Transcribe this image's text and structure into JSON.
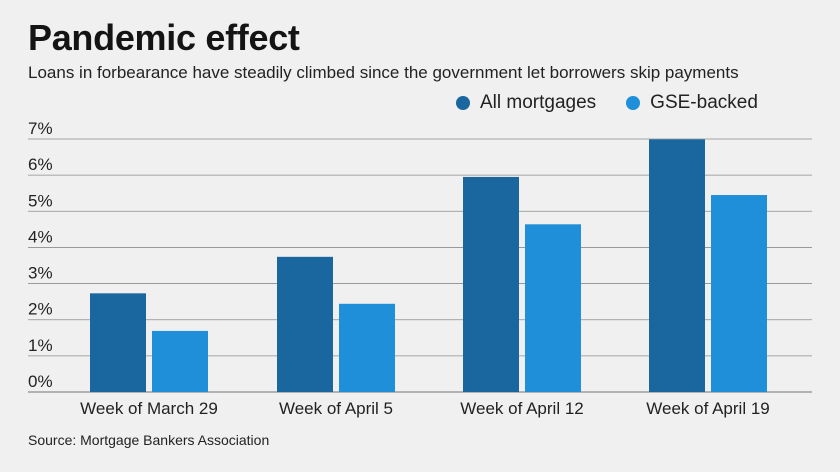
{
  "title": "Pandemic effect",
  "subtitle": "Loans in forbearance have steadily climbed since the government let borrowers skip payments",
  "source": "Source: Mortgage Bankers Association",
  "colors": {
    "all": "#1a67a0",
    "gse": "#1e8fd8",
    "grid": "#8d8d8d",
    "background": "#eff0ef"
  },
  "chart_data": {
    "type": "bar",
    "categories": [
      "Week of March 29",
      "Week of April 5",
      "Week of April 12",
      "Week of April 19"
    ],
    "series": [
      {
        "name": "All mortgages",
        "values": [
          2.73,
          3.74,
          5.95,
          6.99
        ]
      },
      {
        "name": "GSE-backed",
        "values": [
          1.69,
          2.44,
          4.64,
          5.45
        ]
      }
    ],
    "ylim": [
      0,
      7
    ],
    "yticks": [
      "0%",
      "1%",
      "2%",
      "3%",
      "4%",
      "5%",
      "6%",
      "7%"
    ],
    "grid": true,
    "legend": "top-right"
  }
}
